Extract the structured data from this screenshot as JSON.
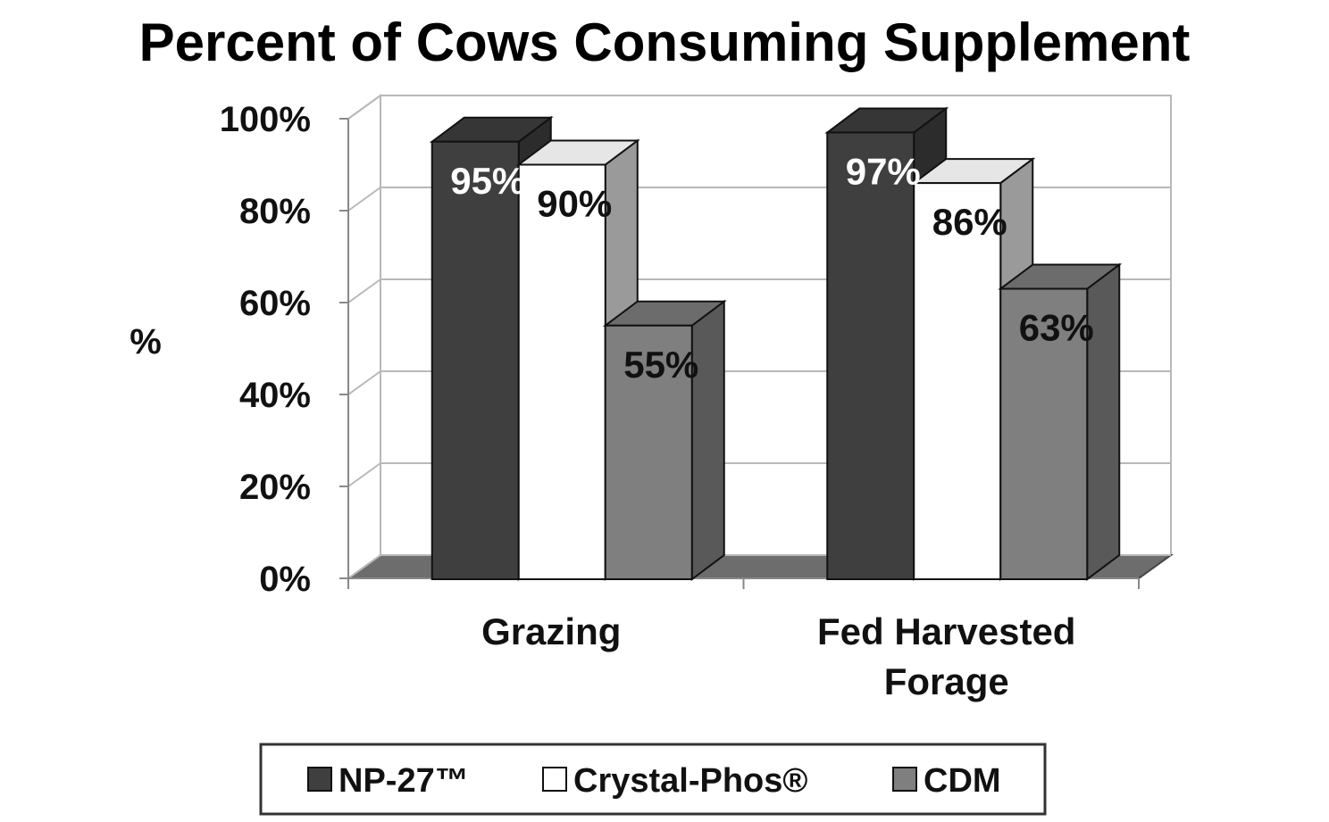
{
  "chart_data": {
    "type": "bar",
    "title": "Percent of Cows Consuming Supplement",
    "ylabel": "%",
    "xlabel": "",
    "ylim": [
      0,
      100
    ],
    "y_ticks": [
      "0%",
      "20%",
      "40%",
      "60%",
      "80%",
      "100%"
    ],
    "y_tick_values": [
      0,
      20,
      40,
      60,
      80,
      100
    ],
    "categories": [
      "Grazing",
      "Fed Harvested Forage"
    ],
    "category_lines": [
      [
        "Grazing"
      ],
      [
        "Fed Harvested",
        "Forage"
      ]
    ],
    "series": [
      {
        "name": "NP-27™",
        "values": [
          95,
          97
        ],
        "labels": [
          "95%",
          "97%"
        ],
        "color": "#3f3f3f",
        "label_color": "#ffffff"
      },
      {
        "name": "Crystal-Phos®",
        "values": [
          90,
          86
        ],
        "labels": [
          "90%",
          "86%"
        ],
        "color": "#ffffff",
        "label_color": "#111111"
      },
      {
        "name": "CDM",
        "values": [
          55,
          63
        ],
        "labels": [
          "55%",
          "63%"
        ],
        "color": "#7f7f7f",
        "label_color": "#111111"
      }
    ],
    "grid": true,
    "legend_position": "bottom",
    "style": "3d-clustered-column"
  }
}
